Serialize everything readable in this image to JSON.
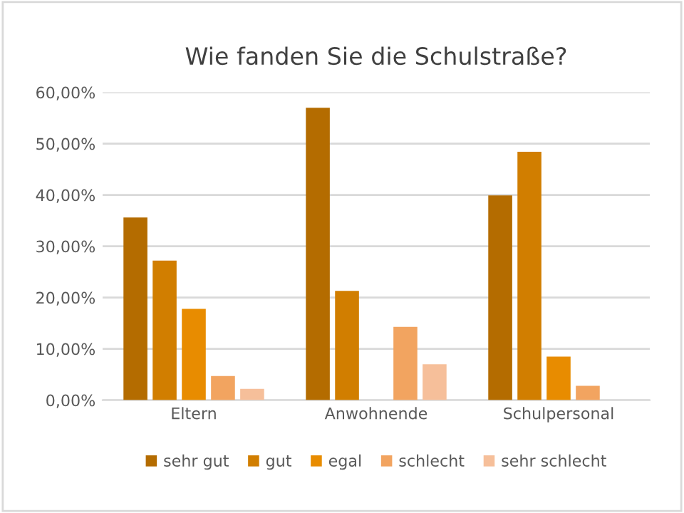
{
  "chart_data": {
    "type": "bar",
    "title": "Wie fanden Sie die Schulstraße?",
    "categories": [
      "Eltern",
      "Anwohnende",
      "Schulpersonal"
    ],
    "series": [
      {
        "name": "sehr gut",
        "color": "#b46c00",
        "values": [
          35.6,
          57.0,
          39.9
        ]
      },
      {
        "name": "gut",
        "color": "#d17e00",
        "values": [
          27.2,
          21.3,
          48.4
        ]
      },
      {
        "name": "egal",
        "color": "#e88c00",
        "values": [
          17.8,
          0,
          8.5
        ]
      },
      {
        "name": "schlecht",
        "color": "#f2a460",
        "values": [
          4.7,
          14.3,
          2.8
        ]
      },
      {
        "name": "sehr schlecht",
        "color": "#f6bf9a",
        "values": [
          2.2,
          7.0,
          0
        ]
      }
    ],
    "ylim": [
      0,
      60
    ],
    "yticks": [
      {
        "value": 0,
        "label": "0,00%"
      },
      {
        "value": 10,
        "label": "10,00%"
      },
      {
        "value": 20,
        "label": "20,00%"
      },
      {
        "value": 30,
        "label": "30,00%"
      },
      {
        "value": 40,
        "label": "40,00%"
      },
      {
        "value": 50,
        "label": "50,00%"
      },
      {
        "value": 60,
        "label": "60,00%"
      }
    ],
    "grid": "y",
    "legend": "bottom"
  }
}
